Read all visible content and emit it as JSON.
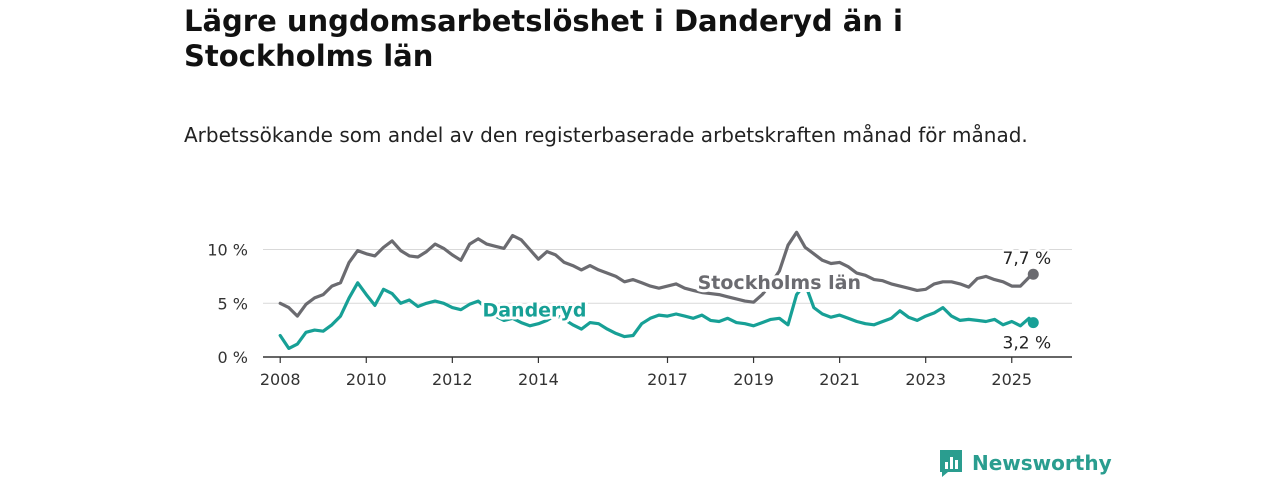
{
  "title": "Lägre ungdomsarbetslöshet i Danderyd än i Stockholms län",
  "subtitle": "Arbetssökande som andel av den registerbaserade arbetskraften månad för månad.",
  "logo": {
    "text": "Newsworthy",
    "icon": "newsworthy-logo-icon",
    "color": "#2a9d8f"
  },
  "chart_data": {
    "type": "line",
    "ylim": [
      0,
      12
    ],
    "xlim": [
      2007.6,
      2026.4
    ],
    "y_ticks": [
      {
        "value": 0,
        "label": "0 %"
      },
      {
        "value": 5,
        "label": "5 %"
      },
      {
        "value": 10,
        "label": "10 %"
      }
    ],
    "x_ticks": [
      {
        "value": 2008,
        "label": "2008"
      },
      {
        "value": 2010,
        "label": "2010"
      },
      {
        "value": 2012,
        "label": "2012"
      },
      {
        "value": 2014,
        "label": "2014"
      },
      {
        "value": 2017,
        "label": "2017"
      },
      {
        "value": 2019,
        "label": "2019"
      },
      {
        "value": 2021,
        "label": "2021"
      },
      {
        "value": 2023,
        "label": "2023"
      },
      {
        "value": 2025,
        "label": "2025"
      }
    ],
    "grid": true,
    "series": [
      {
        "name": "Stockholms län",
        "color": "#6b6b70",
        "end_label": "7,7 %",
        "end_value": 7.7,
        "x": [
          2008.0,
          2008.2,
          2008.4,
          2008.6,
          2008.8,
          2009.0,
          2009.2,
          2009.4,
          2009.6,
          2009.8,
          2010.0,
          2010.2,
          2010.4,
          2010.6,
          2010.8,
          2011.0,
          2011.2,
          2011.4,
          2011.6,
          2011.8,
          2012.0,
          2012.2,
          2012.4,
          2012.6,
          2012.8,
          2013.0,
          2013.2,
          2013.4,
          2013.6,
          2013.8,
          2014.0,
          2014.2,
          2014.4,
          2014.6,
          2014.8,
          2015.0,
          2015.2,
          2015.4,
          2015.6,
          2015.8,
          2016.0,
          2016.2,
          2016.4,
          2016.6,
          2016.8,
          2017.0,
          2017.2,
          2017.4,
          2017.6,
          2017.8,
          2018.0,
          2018.2,
          2018.4,
          2018.6,
          2018.8,
          2019.0,
          2019.2,
          2019.4,
          2019.6,
          2019.8,
          2020.0,
          2020.2,
          2020.4,
          2020.6,
          2020.8,
          2021.0,
          2021.2,
          2021.4,
          2021.6,
          2021.8,
          2022.0,
          2022.2,
          2022.4,
          2022.6,
          2022.8,
          2023.0,
          2023.2,
          2023.4,
          2023.6,
          2023.8,
          2024.0,
          2024.2,
          2024.4,
          2024.6,
          2024.8,
          2025.0,
          2025.2,
          2025.4,
          2025.5
        ],
        "values": [
          5.0,
          4.6,
          3.8,
          4.9,
          5.5,
          5.8,
          6.6,
          6.9,
          8.8,
          9.9,
          9.6,
          9.4,
          10.2,
          10.8,
          9.9,
          9.4,
          9.3,
          9.8,
          10.5,
          10.1,
          9.5,
          9.0,
          10.5,
          11.0,
          10.5,
          10.3,
          10.1,
          11.3,
          10.9,
          10.0,
          9.1,
          9.8,
          9.5,
          8.8,
          8.5,
          8.1,
          8.5,
          8.1,
          7.8,
          7.5,
          7.0,
          7.2,
          6.9,
          6.6,
          6.4,
          6.6,
          6.8,
          6.4,
          6.2,
          6.0,
          5.9,
          5.8,
          5.6,
          5.4,
          5.2,
          5.1,
          5.8,
          6.8,
          8.0,
          10.4,
          11.6,
          10.2,
          9.6,
          9.0,
          8.7,
          8.8,
          8.4,
          7.8,
          7.6,
          7.2,
          7.1,
          6.8,
          6.6,
          6.4,
          6.2,
          6.3,
          6.8,
          7.0,
          7.0,
          6.8,
          6.5,
          7.3,
          7.5,
          7.2,
          7.0,
          6.6,
          6.6,
          7.4,
          7.7
        ]
      },
      {
        "name": "Danderyd",
        "color": "#17a096",
        "end_label": "3,2 %",
        "end_value": 3.2,
        "x": [
          2008.0,
          2008.2,
          2008.4,
          2008.6,
          2008.8,
          2009.0,
          2009.2,
          2009.4,
          2009.6,
          2009.8,
          2010.0,
          2010.2,
          2010.4,
          2010.6,
          2010.8,
          2011.0,
          2011.2,
          2011.4,
          2011.6,
          2011.8,
          2012.0,
          2012.2,
          2012.4,
          2012.6,
          2012.8,
          2013.0,
          2013.2,
          2013.4,
          2013.6,
          2013.8,
          2014.0,
          2014.2,
          2014.4,
          2014.6,
          2014.8,
          2015.0,
          2015.2,
          2015.4,
          2015.6,
          2015.8,
          2016.0,
          2016.2,
          2016.4,
          2016.6,
          2016.8,
          2017.0,
          2017.2,
          2017.4,
          2017.6,
          2017.8,
          2018.0,
          2018.2,
          2018.4,
          2018.6,
          2018.8,
          2019.0,
          2019.2,
          2019.4,
          2019.6,
          2019.8,
          2020.0,
          2020.2,
          2020.4,
          2020.6,
          2020.8,
          2021.0,
          2021.2,
          2021.4,
          2021.6,
          2021.8,
          2022.0,
          2022.2,
          2022.4,
          2022.6,
          2022.8,
          2023.0,
          2023.2,
          2023.4,
          2023.6,
          2023.8,
          2024.0,
          2024.2,
          2024.4,
          2024.6,
          2024.8,
          2025.0,
          2025.2,
          2025.4,
          2025.5
        ],
        "values": [
          2.0,
          0.8,
          1.2,
          2.3,
          2.5,
          2.4,
          3.0,
          3.8,
          5.5,
          6.9,
          5.8,
          4.8,
          6.3,
          5.9,
          5.0,
          5.3,
          4.7,
          5.0,
          5.2,
          5.0,
          4.6,
          4.4,
          4.9,
          5.2,
          4.5,
          3.8,
          3.4,
          3.6,
          3.2,
          2.9,
          3.1,
          3.4,
          3.9,
          3.5,
          3.0,
          2.6,
          3.2,
          3.1,
          2.6,
          2.2,
          1.9,
          2.0,
          3.1,
          3.6,
          3.9,
          3.8,
          4.0,
          3.8,
          3.6,
          3.9,
          3.4,
          3.3,
          3.6,
          3.2,
          3.1,
          2.9,
          3.2,
          3.5,
          3.6,
          3.0,
          5.8,
          6.8,
          4.6,
          4.0,
          3.7,
          3.9,
          3.6,
          3.3,
          3.1,
          3.0,
          3.3,
          3.6,
          4.3,
          3.7,
          3.4,
          3.8,
          4.1,
          4.6,
          3.8,
          3.4,
          3.5,
          3.4,
          3.3,
          3.5,
          3.0,
          3.3,
          2.9,
          3.6,
          3.2
        ]
      }
    ]
  }
}
